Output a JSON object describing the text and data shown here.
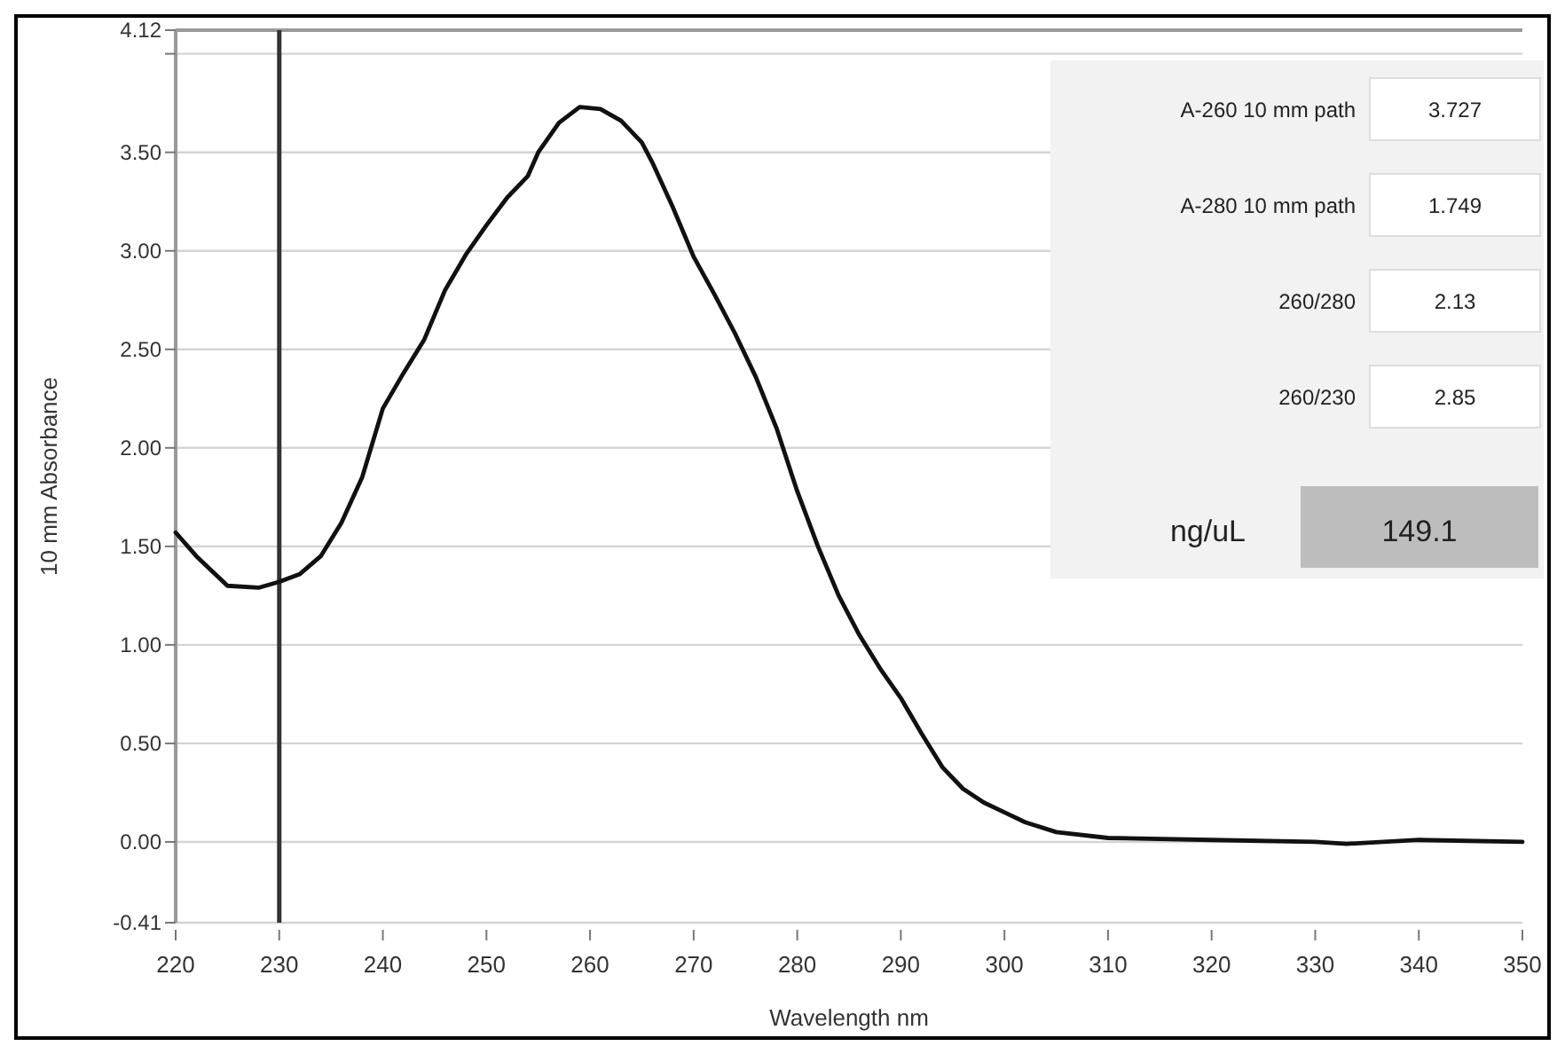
{
  "chart_data": {
    "type": "line",
    "xlabel": "Wavelength nm",
    "ylabel": "10 mm Absorbance",
    "xlim": [
      220,
      350
    ],
    "xticks": [
      220,
      230,
      240,
      250,
      260,
      270,
      280,
      290,
      300,
      310,
      320,
      330,
      340,
      350
    ],
    "ylim": [
      -0.41,
      4.12
    ],
    "yticks": [
      {
        "value": -0.41,
        "label": "-0.41"
      },
      {
        "value": 0,
        "label": "0.00"
      },
      {
        "value": 0.5,
        "label": "0.50"
      },
      {
        "value": 1,
        "label": "1.00"
      },
      {
        "value": 1.5,
        "label": "1.50"
      },
      {
        "value": 2,
        "label": "2.00"
      },
      {
        "value": 2.5,
        "label": "2.50"
      },
      {
        "value": 3,
        "label": "3.00"
      },
      {
        "value": 3.5,
        "label": "3.50"
      },
      {
        "value": 4,
        "label": null
      },
      {
        "value": 4.12,
        "label": "4.12"
      }
    ],
    "grid": "y",
    "marker": "none",
    "line_style": "solid",
    "series": [
      {
        "color": "#111111",
        "x": [
          220,
          222,
          225,
          228,
          230,
          232,
          234,
          236,
          238,
          240,
          242,
          244,
          246,
          248,
          250,
          252,
          254,
          255,
          257,
          259,
          261,
          263,
          265,
          266,
          268,
          270,
          272,
          274,
          276,
          278,
          280,
          282,
          284,
          286,
          288,
          290,
          292,
          294,
          296,
          298,
          300,
          302,
          305,
          310,
          320,
          330,
          333,
          340,
          350
        ],
        "values": [
          1.57,
          1.45,
          1.3,
          1.29,
          1.32,
          1.36,
          1.45,
          1.62,
          1.85,
          2.2,
          2.38,
          2.55,
          2.8,
          2.98,
          3.13,
          3.27,
          3.38,
          3.5,
          3.65,
          3.73,
          3.72,
          3.66,
          3.55,
          3.45,
          3.22,
          2.97,
          2.78,
          2.58,
          2.36,
          2.1,
          1.78,
          1.5,
          1.25,
          1.05,
          0.88,
          0.73,
          0.55,
          0.38,
          0.27,
          0.2,
          0.15,
          0.1,
          0.05,
          0.02,
          0.01,
          0.0,
          -0.01,
          0.01,
          0.0
        ]
      }
    ],
    "ref_lines": [
      {
        "axis": "x",
        "value": 230,
        "color": "#333333"
      }
    ],
    "annotations": [
      "A-260 10 mm path",
      "3.727",
      "A-280 10 mm path",
      "1.749",
      "260/280",
      "2.13",
      "260/230",
      "2.85",
      "ng/uL",
      "149.1"
    ]
  }
}
